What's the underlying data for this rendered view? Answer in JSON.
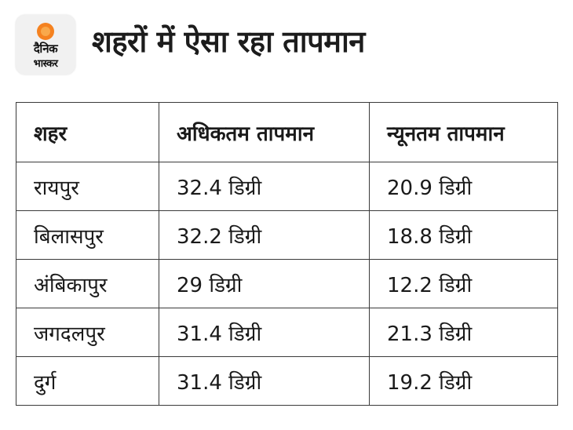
{
  "logo": {
    "line1": "दैनिक",
    "line2": "भास्कर",
    "sun_color": "#f58220"
  },
  "title": "शहरों में ऐसा रहा तापमान",
  "table": {
    "headers": [
      "शहर",
      "अधिकतम तापमान",
      "न्यूनतम तापमान"
    ],
    "rows": [
      [
        "रायपुर",
        "32.4 डिग्री",
        "20.9 डिग्री"
      ],
      [
        "बिलासपुर",
        "32.2 डिग्री",
        "18.8 डिग्री"
      ],
      [
        "अंबिकापुर",
        "29 डिग्री",
        "12.2 डिग्री"
      ],
      [
        "जगदलपुर",
        "31.4 डिग्री",
        "21.3 डिग्री"
      ],
      [
        "दुर्ग",
        "31.4 डिग्री",
        "19.2 डिग्री"
      ]
    ]
  }
}
